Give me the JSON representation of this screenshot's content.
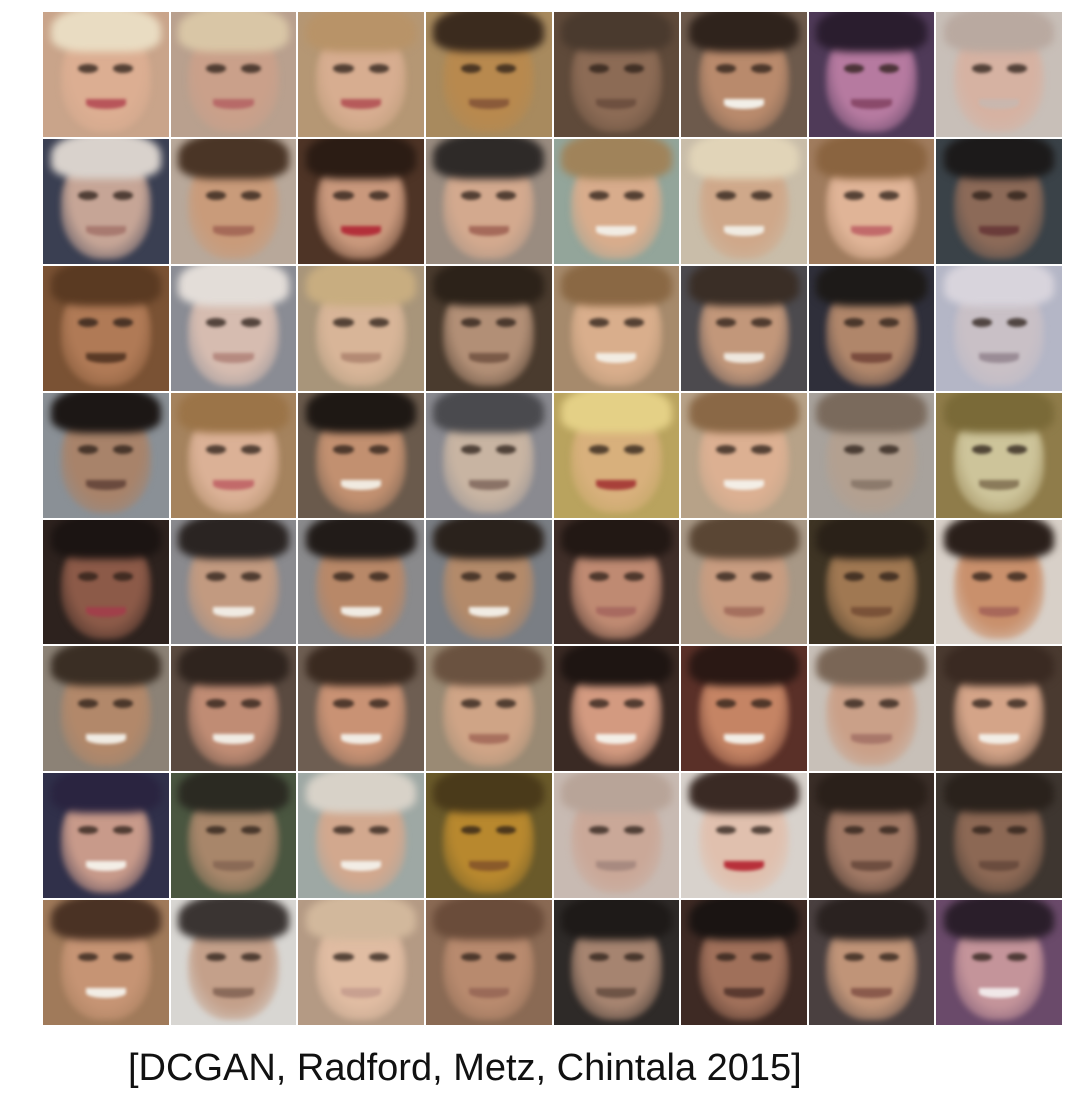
{
  "figure": {
    "caption": "[DCGAN, Radford, Metz, Chintala 2015]",
    "grid": {
      "rows": 8,
      "columns": 8,
      "tiles": [
        {
          "bg": "#c9a48a",
          "skin": "#dcae92",
          "hair": "#e9dcc2",
          "mouth": "#b8555a"
        },
        {
          "bg": "#b9a08e",
          "skin": "#caa08a",
          "hair": "#d9c6a6",
          "mouth": "#b76a68"
        },
        {
          "bg": "#b59774",
          "skin": "#d7ad90",
          "hair": "#b89368",
          "mouth": "#b65a5a"
        },
        {
          "bg": "#a88a5e",
          "skin": "#b8894e",
          "hair": "#3b2b1e",
          "mouth": "#8a5a3a"
        },
        {
          "bg": "#5f4a3a",
          "skin": "#8c6b55",
          "hair": "#4a3a2e",
          "mouth": "#6e5040"
        },
        {
          "bg": "#6d5a4c",
          "skin": "#b98a6c",
          "hair": "#2f231c",
          "mouth": "#f2efe8"
        },
        {
          "bg": "#4f3a58",
          "skin": "#b67aa0",
          "hair": "#2a1d2e",
          "mouth": "#8a4a6a"
        },
        {
          "bg": "#c8bfb8",
          "skin": "#d6b2a2",
          "hair": "#b9a9a0",
          "mouth": "#c9b7ae"
        },
        {
          "bg": "#3a3f52",
          "skin": "#c6a596",
          "hair": "#d9d2cc",
          "mouth": "#a87a70"
        },
        {
          "bg": "#b8a89a",
          "skin": "#c99b7a",
          "hair": "#4a3526",
          "mouth": "#a56a58"
        },
        {
          "bg": "#4e3426",
          "skin": "#c9987c",
          "hair": "#2b1c14",
          "mouth": "#b3303a"
        },
        {
          "bg": "#9a8c80",
          "skin": "#d3a98e",
          "hair": "#2e2a28",
          "mouth": "#a56a5a"
        },
        {
          "bg": "#93a59a",
          "skin": "#d8ac8c",
          "hair": "#a0835a",
          "mouth": "#f1ece4"
        },
        {
          "bg": "#c9bda9",
          "skin": "#cfa88a",
          "hair": "#e1d4b8",
          "mouth": "#f0ebe2"
        },
        {
          "bg": "#a07c5e",
          "skin": "#e0b497",
          "hair": "#8a6440",
          "mouth": "#c16a6a"
        },
        {
          "bg": "#3a4248",
          "skin": "#8c6a58",
          "hair": "#1c1a1a",
          "mouth": "#6a3c3a"
        },
        {
          "bg": "#7a5234",
          "skin": "#b07a56",
          "hair": "#5a3a22",
          "mouth": "#5a3a26"
        },
        {
          "bg": "#8a8c94",
          "skin": "#d6bcb0",
          "hair": "#e3ddd8",
          "mouth": "#b58a80"
        },
        {
          "bg": "#a8957a",
          "skin": "#d8b598",
          "hair": "#c8ad80",
          "mouth": "#b38a74"
        },
        {
          "bg": "#4a3b2e",
          "skin": "#b28f76",
          "hair": "#2c2219",
          "mouth": "#7a5a48"
        },
        {
          "bg": "#a68a6c",
          "skin": "#d9ae8c",
          "hair": "#8a6844",
          "mouth": "#f2ece2"
        },
        {
          "bg": "#4c4a4e",
          "skin": "#c2977a",
          "hair": "#3a2e26",
          "mouth": "#eee7de"
        },
        {
          "bg": "#2f2f3a",
          "skin": "#b0866a",
          "hair": "#1d1a18",
          "mouth": "#7a4c3e"
        },
        {
          "bg": "#b4b6c6",
          "skin": "#c9c0c6",
          "hair": "#d8d4dc",
          "mouth": "#9a8c96"
        },
        {
          "bg": "#8a9096",
          "skin": "#a8836a",
          "hair": "#1c1715",
          "mouth": "#6a4a3e"
        },
        {
          "bg": "#a5835e",
          "skin": "#dbb196",
          "hair": "#9b7448",
          "mouth": "#c26a6a"
        },
        {
          "bg": "#6a5a4c",
          "skin": "#c29070",
          "hair": "#1e1814",
          "mouth": "#f0eae0"
        },
        {
          "bg": "#8a8a90",
          "skin": "#c8b4a2",
          "hair": "#4a4a4e",
          "mouth": "#8a7266"
        },
        {
          "bg": "#b9a35e",
          "skin": "#d8b07c",
          "hair": "#e4d086",
          "mouth": "#a8403a"
        },
        {
          "bg": "#b7a288",
          "skin": "#dcb092",
          "hair": "#8a6846",
          "mouth": "#f3eee6"
        },
        {
          "bg": "#a8a29c",
          "skin": "#b3a090",
          "hair": "#7a6a5c",
          "mouth": "#8c7a6c"
        },
        {
          "bg": "#8f7c4a",
          "skin": "#cdc49a",
          "hair": "#7a6a38",
          "mouth": "#8a7a5a"
        },
        {
          "bg": "#2d221e",
          "skin": "#8c5a48",
          "hair": "#1b1412",
          "mouth": "#a0404a"
        },
        {
          "bg": "#8a8a8e",
          "skin": "#c29a80",
          "hair": "#2a2422",
          "mouth": "#f0ebe3"
        },
        {
          "bg": "#8a8a8c",
          "skin": "#b88868",
          "hair": "#211b18",
          "mouth": "#f0ebe3"
        },
        {
          "bg": "#7a7e84",
          "skin": "#b38a6a",
          "hair": "#2a221c",
          "mouth": "#f1ece4"
        },
        {
          "bg": "#3f2e28",
          "skin": "#bf8a72",
          "hair": "#221814",
          "mouth": "#a86a60"
        },
        {
          "bg": "#a89886",
          "skin": "#c89c80",
          "hair": "#5a4634",
          "mouth": "#a5705e"
        },
        {
          "bg": "#3e3424",
          "skin": "#a07852",
          "hair": "#2a2118",
          "mouth": "#7a5238"
        },
        {
          "bg": "#d8d0c8",
          "skin": "#c9906c",
          "hair": "#2a1f1a",
          "mouth": "#a8685a"
        },
        {
          "bg": "#8c8276",
          "skin": "#b2886a",
          "hair": "#3a2e24",
          "mouth": "#f0ebe3"
        },
        {
          "bg": "#5a4a40",
          "skin": "#c08c74",
          "hair": "#2f241e",
          "mouth": "#f0ebe3"
        },
        {
          "bg": "#6e5e52",
          "skin": "#c99274",
          "hair": "#3a2a20",
          "mouth": "#f1ece4"
        },
        {
          "bg": "#9a8a74",
          "skin": "#cfa486",
          "hair": "#6a5240",
          "mouth": "#a8705e"
        },
        {
          "bg": "#3a2a24",
          "skin": "#d39a80",
          "hair": "#1e1512",
          "mouth": "#f3eee6"
        },
        {
          "bg": "#5a3028",
          "skin": "#c58464",
          "hair": "#2a1814",
          "mouth": "#f2ede5"
        },
        {
          "bg": "#c8c0b8",
          "skin": "#caa088",
          "hair": "#7a6656",
          "mouth": "#a8776a"
        },
        {
          "bg": "#4a3a30",
          "skin": "#d4a488",
          "hair": "#3a2a22",
          "mouth": "#f2ede5"
        },
        {
          "bg": "#30304a",
          "skin": "#c89a8a",
          "hair": "#2a2440",
          "mouth": "#f3eee6"
        },
        {
          "bg": "#4a5640",
          "skin": "#a8866a",
          "hair": "#2b2a22",
          "mouth": "#8a6a56"
        },
        {
          "bg": "#9ea8a4",
          "skin": "#d2a88e",
          "hair": "#d8d2c8",
          "mouth": "#f2ede5"
        },
        {
          "bg": "#6a5a2a",
          "skin": "#b8882e",
          "hair": "#4a3a1a",
          "mouth": "#8a5a2a"
        },
        {
          "bg": "#c8bab2",
          "skin": "#caa898",
          "hair": "#b8a498",
          "mouth": "#a88a80"
        },
        {
          "bg": "#d8d2cc",
          "skin": "#e0c0ae",
          "hair": "#3a2a24",
          "mouth": "#b8303a"
        },
        {
          "bg": "#3a2e28",
          "skin": "#a07864",
          "hair": "#2a201a",
          "mouth": "#6e4e40"
        },
        {
          "bg": "#3e3630",
          "skin": "#8c6854",
          "hair": "#2a221c",
          "mouth": "#6a4c3e"
        },
        {
          "bg": "#a07a5a",
          "skin": "#c69474",
          "hair": "#4a3224",
          "mouth": "#f2ede5"
        },
        {
          "bg": "#d8d6d2",
          "skin": "#c4a08a",
          "hair": "#3a3432",
          "mouth": "#8a6a5a"
        },
        {
          "bg": "#b49a84",
          "skin": "#e0bca2",
          "hair": "#d2b89c",
          "mouth": "#c8a090"
        },
        {
          "bg": "#8a6a54",
          "skin": "#b88a6e",
          "hair": "#6a4c3a",
          "mouth": "#9a6a58"
        },
        {
          "bg": "#2e2a28",
          "skin": "#a68470",
          "hair": "#1e1a18",
          "mouth": "#6e5446"
        },
        {
          "bg": "#3e2a24",
          "skin": "#a0705a",
          "hair": "#1a1412",
          "mouth": "#5a3a30"
        },
        {
          "bg": "#4a4040",
          "skin": "#c09478",
          "hair": "#2a2220",
          "mouth": "#8a5a4c"
        },
        {
          "bg": "#6a4a6a",
          "skin": "#c4949a",
          "hair": "#2a1e2a",
          "mouth": "#f0e8e8"
        }
      ]
    }
  }
}
